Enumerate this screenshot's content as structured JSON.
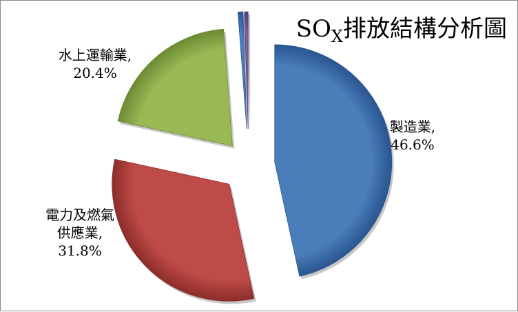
{
  "chart_data": {
    "type": "pie",
    "title": {
      "main": "SO",
      "subscript": "X",
      "rest": "排放結構分析圖"
    },
    "slices": [
      {
        "name": "製造業",
        "value": 46.6,
        "label_lines": [
          "製造業,",
          "46.6%"
        ],
        "color": "#4a7ebb",
        "dark": "#2a5590"
      },
      {
        "name": "電力及燃氣供應業",
        "value": 31.8,
        "label_lines": [
          "電力及燃氣",
          "供應業,",
          "31.8%"
        ],
        "color": "#be4b48",
        "dark": "#8c2d2a"
      },
      {
        "name": "水上運輸業",
        "value": 20.4,
        "label_lines": [
          "水上運輸業,",
          "20.4%"
        ],
        "color": "#98b954",
        "dark": "#6d8a34"
      },
      {
        "name": "other-a",
        "value": 0.7,
        "label_lines": [],
        "color": "#4a7ebb",
        "dark": "#2a5590"
      },
      {
        "name": "other-b",
        "value": 0.5,
        "label_lines": [],
        "color": "#7d5fa0",
        "dark": "#553b76"
      }
    ],
    "legend": "none",
    "exploded": true
  }
}
